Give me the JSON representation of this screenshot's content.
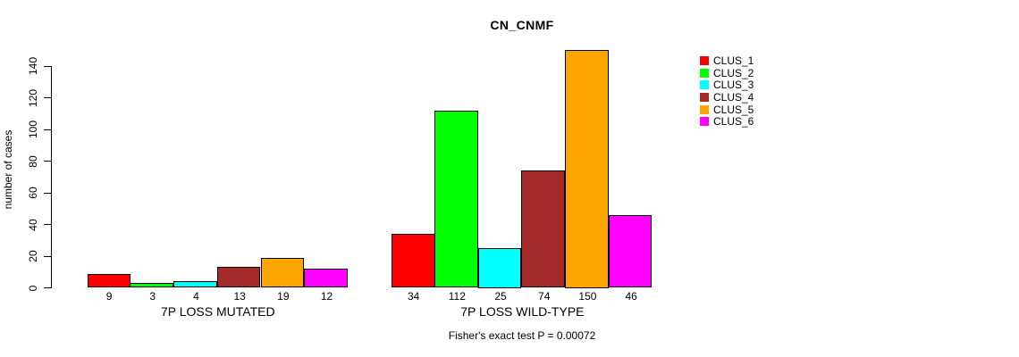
{
  "chart_data": {
    "type": "bar",
    "title": "CN_CNMF",
    "ylabel": "number of cases",
    "xlabel": "",
    "ylim": [
      0,
      150
    ],
    "yticks": [
      0,
      20,
      40,
      60,
      80,
      100,
      120,
      140
    ],
    "grid": false,
    "legend_position": "right",
    "series": [
      {
        "name": "CLUS_1",
        "color": "#FF0000"
      },
      {
        "name": "CLUS_2",
        "color": "#00FF00"
      },
      {
        "name": "CLUS_3",
        "color": "#00FFFF"
      },
      {
        "name": "CLUS_4",
        "color": "#A52A2A"
      },
      {
        "name": "CLUS_5",
        "color": "#FFA500"
      },
      {
        "name": "CLUS_6",
        "color": "#FF00FF"
      }
    ],
    "groups": [
      {
        "label": "7P LOSS MUTATED",
        "values": [
          9,
          3,
          4,
          13,
          19,
          12
        ]
      },
      {
        "label": "7P LOSS WILD-TYPE",
        "values": [
          34,
          112,
          25,
          74,
          150,
          46
        ]
      }
    ],
    "caption": "Fisher's exact test P = 0.00072"
  }
}
